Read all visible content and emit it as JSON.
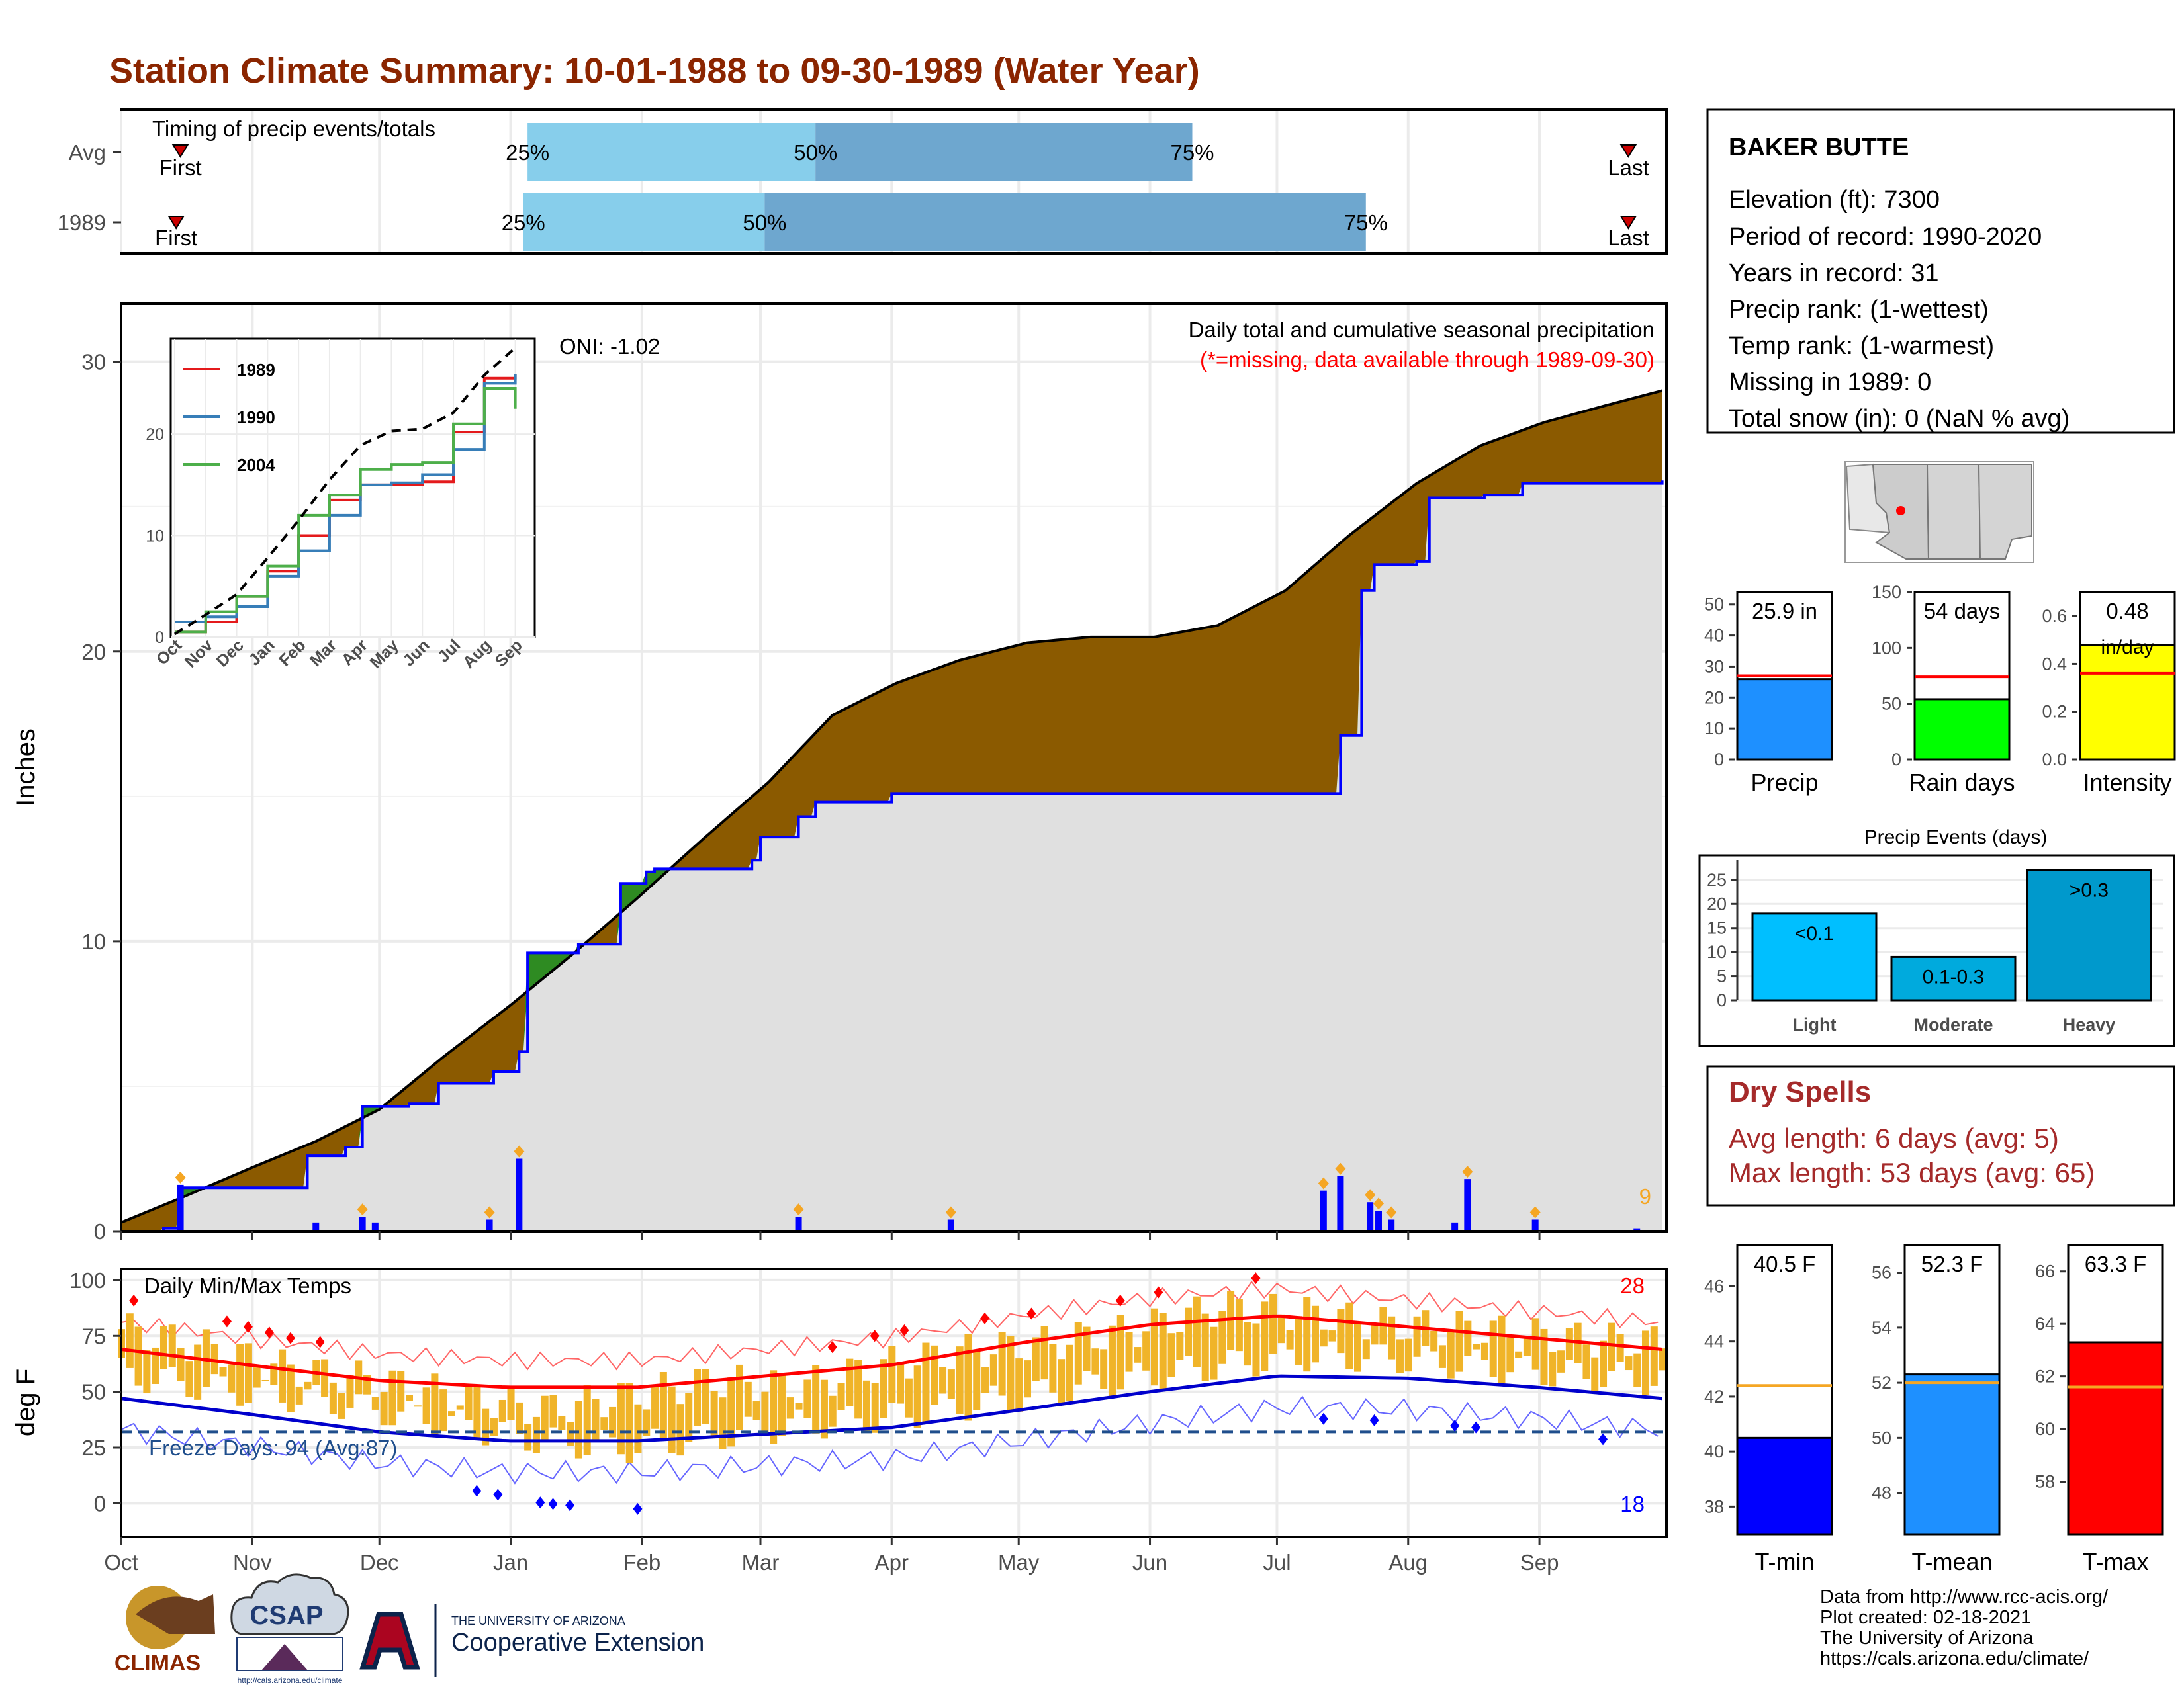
{
  "title": "Station Climate Summary: 10-01-1988 to 09-30-1989 (Water Year)",
  "colors": {
    "title": "#8b2500",
    "brown": "#8b5a00",
    "green": "#2e8b22",
    "blue": "#0000ff",
    "light_blue": "#87ceeb",
    "steel_blue": "#6ea7cf",
    "orange": "#f0b429",
    "red": "#ff0000",
    "avg_line": "#f5a623",
    "grey_fill": "#e0e0e0",
    "dry_spells": "#a52a2a"
  },
  "timing": {
    "label": "Timing of precip events/totals",
    "rows": [
      {
        "name": "Avg",
        "first_label": "First",
        "last_label": "Last",
        "first_day": 14,
        "last_day": 356,
        "p25": 96,
        "p50": 164,
        "p75": 253,
        "p25_label": "25%",
        "p50_label": "50%",
        "p75_label": "75%"
      },
      {
        "name": "1989",
        "first_label": "First",
        "last_label": "Last",
        "first_day": 13,
        "last_day": 356,
        "p25": 95,
        "p50": 152,
        "p75": 294,
        "p25_label": "25%",
        "p50_label": "50%",
        "p75_label": "75%"
      }
    ]
  },
  "chart_data": [
    {
      "type": "area",
      "id": "cumulative_precip",
      "title": "Daily total and cumulative seasonal precipitation",
      "subtitle": "(*=missing, data available through 1989-09-30)",
      "ylabel": "Inches",
      "ylim": [
        0,
        32
      ],
      "yticks": [
        0,
        10,
        20,
        30
      ],
      "x_months": [
        "Oct",
        "Nov",
        "Dec",
        "Jan",
        "Feb",
        "Mar",
        "Apr",
        "May",
        "Jun",
        "Jul",
        "Aug",
        "Sep"
      ],
      "oni_label": "ONI: -1.02",
      "count_label": "9",
      "avg_cumulative": {
        "day": [
          0,
          15,
          31,
          46,
          61,
          76,
          92,
          107,
          122,
          138,
          153,
          168,
          183,
          198,
          214,
          229,
          244,
          259,
          275,
          290,
          306,
          321,
          336,
          351,
          364
        ],
        "value": [
          0.3,
          1.2,
          2.2,
          3.1,
          4.2,
          6.0,
          7.8,
          9.6,
          11.5,
          13.6,
          15.5,
          17.8,
          18.9,
          19.7,
          20.3,
          20.5,
          20.5,
          20.9,
          22.1,
          24.0,
          25.8,
          27.1,
          27.9,
          28.5,
          29.0
        ]
      },
      "obs_cumulative": {
        "day": [
          0,
          10,
          14,
          40,
          44,
          53,
          57,
          68,
          75,
          88,
          94,
          96,
          108,
          118,
          124,
          126,
          149,
          151,
          160,
          164,
          176,
          182,
          226,
          232,
          282,
          288,
          293,
          296,
          306,
          309,
          322,
          331,
          364
        ],
        "value": [
          0.0,
          0.1,
          1.5,
          1.5,
          2.6,
          2.9,
          4.3,
          4.4,
          5.1,
          5.5,
          6.2,
          9.6,
          9.9,
          12.0,
          12.4,
          12.5,
          12.8,
          13.6,
          14.3,
          14.8,
          14.8,
          15.1,
          15.1,
          15.1,
          15.1,
          17.1,
          22.1,
          23.0,
          23.1,
          25.3,
          25.4,
          25.8,
          25.9
        ]
      },
      "daily_precip": {
        "day": [
          14,
          46,
          57,
          60,
          87,
          94,
          160,
          196,
          284,
          288,
          295,
          297,
          300,
          315,
          318,
          334,
          358
        ],
        "value": [
          1.6,
          0.3,
          0.5,
          0.3,
          0.4,
          2.5,
          0.5,
          0.4,
          1.4,
          1.9,
          1.0,
          0.7,
          0.4,
          0.3,
          1.8,
          0.4,
          0.1
        ]
      },
      "inset": {
        "type": "line",
        "xticks": [
          "Oct",
          "Nov",
          "Dec",
          "Jan",
          "Feb",
          "Mar",
          "Apr",
          "May",
          "Jun",
          "Jul",
          "Aug",
          "Sep"
        ],
        "yticks": [
          0,
          10,
          20
        ],
        "ylim": [
          0,
          29
        ],
        "series": [
          {
            "name": "1989",
            "color": "#e41a1c",
            "values": [
              0.5,
              1.5,
              4.0,
              6.5,
              10.0,
              13.5,
              15.0,
              15.0,
              15.3,
              20.2,
              25.5,
              25.9
            ]
          },
          {
            "name": "1990",
            "color": "#377eb8",
            "values": [
              1.5,
              2.0,
              3.0,
              6.0,
              8.5,
              12.0,
              15.0,
              15.2,
              16.0,
              18.5,
              25.0,
              25.9
            ]
          },
          {
            "name": "2004",
            "color": "#4daf4a",
            "values": [
              0.5,
              2.5,
              4.0,
              7.0,
              12.0,
              14.0,
              16.5,
              17.0,
              17.2,
              21.0,
              24.5,
              22.5
            ]
          }
        ],
        "avg_values": [
          0.3,
          2.2,
          4.2,
          7.8,
          11.5,
          15.5,
          18.9,
          20.3,
          20.5,
          22.1,
          25.8,
          28.5
        ]
      }
    },
    {
      "type": "bar",
      "id": "temps",
      "title": "Daily Min/Max Temps",
      "ylabel": "deg F",
      "ylim": [
        -15,
        105
      ],
      "yticks": [
        0,
        25,
        50,
        75,
        100
      ],
      "freeze_label": "Freeze Days: 94 (Avg:87)",
      "hot_count_label": "28",
      "cold_count_label": "18",
      "avg_max": {
        "day": [
          0,
          30,
          61,
          91,
          122,
          152,
          182,
          213,
          243,
          273,
          304,
          334,
          364
        ],
        "value": [
          69,
          62,
          55,
          52,
          52,
          57,
          62,
          72,
          80,
          84,
          79,
          74,
          69
        ]
      },
      "avg_min": {
        "day": [
          0,
          30,
          61,
          91,
          122,
          152,
          182,
          213,
          243,
          273,
          304,
          334,
          364
        ],
        "value": [
          47,
          40,
          32,
          28,
          28,
          31,
          34,
          42,
          50,
          57,
          56,
          52,
          47
        ]
      },
      "tmax_sample": {
        "day": [
          0,
          20,
          40,
          60,
          80,
          100,
          120,
          140,
          160,
          180,
          200,
          220,
          240,
          260,
          280,
          300,
          320,
          340,
          364
        ],
        "value": [
          78,
          70,
          60,
          55,
          48,
          42,
          48,
          55,
          52,
          62,
          68,
          72,
          78,
          88,
          85,
          80,
          78,
          74,
          72
        ]
      },
      "tmin_sample": {
        "day": [
          0,
          20,
          40,
          60,
          80,
          100,
          120,
          140,
          160,
          180,
          200,
          220,
          240,
          260,
          280,
          300,
          320,
          340,
          364
        ],
        "value": [
          48,
          42,
          38,
          32,
          25,
          18,
          15,
          20,
          25,
          28,
          34,
          40,
          46,
          52,
          56,
          55,
          52,
          48,
          45
        ]
      }
    },
    {
      "type": "bar",
      "id": "precip_bars",
      "panels": [
        {
          "label": "Precip",
          "value": 25.9,
          "value_label": "25.9 in",
          "avg": 27.0,
          "ylim": [
            0,
            54
          ],
          "yticks": [
            0,
            10,
            20,
            30,
            40,
            50
          ],
          "color": "#1e90ff"
        },
        {
          "label": "Rain days",
          "value": 54,
          "value_label": "54 days",
          "avg": 74,
          "ylim": [
            0,
            150
          ],
          "yticks": [
            0,
            50,
            100,
            150
          ],
          "color": "#00ff00"
        },
        {
          "label": "Intensity",
          "value": 0.48,
          "value_label": "0.48",
          "unit_label": "in/day",
          "avg": 0.36,
          "ylim": [
            0,
            0.7
          ],
          "yticks": [
            0.0,
            0.2,
            0.4,
            0.6
          ],
          "color": "#ffff00"
        }
      ]
    },
    {
      "type": "bar",
      "id": "precip_events",
      "title": "Precip Events (days)",
      "categories": [
        "Light",
        "Moderate",
        "Heavy"
      ],
      "values": [
        18,
        9,
        27
      ],
      "bar_labels": [
        "<0.1",
        "0.1-0.3",
        ">0.3"
      ],
      "colors": [
        "#00bfff",
        "#00aadd",
        "#0099cc"
      ],
      "ylim": [
        0,
        28
      ],
      "yticks": [
        0,
        5,
        10,
        15,
        20,
        25
      ]
    },
    {
      "type": "bar",
      "id": "temp_bars",
      "panels": [
        {
          "label": "T-min",
          "value": 40.5,
          "value_label": "40.5 F",
          "avg": 42.4,
          "ylim": [
            37,
            47.5
          ],
          "yticks": [
            38,
            40,
            42,
            44,
            46
          ],
          "color": "#0000ff"
        },
        {
          "label": "T-mean",
          "value": 52.3,
          "value_label": "52.3 F",
          "avg": 52.0,
          "ylim": [
            46.5,
            57
          ],
          "yticks": [
            48,
            50,
            52,
            54,
            56
          ],
          "color": "#1e90ff"
        },
        {
          "label": "T-max",
          "value": 63.3,
          "value_label": "63.3 F",
          "avg": 61.6,
          "ylim": [
            56,
            67
          ],
          "yticks": [
            58,
            60,
            62,
            64,
            66
          ],
          "color": "#ff0000"
        }
      ]
    }
  ],
  "station": {
    "name": "BAKER BUTTE",
    "lines": [
      "Elevation (ft): 7300",
      "Period of record: 1990-2020",
      "Years in record: 31",
      "Precip rank:  (1-wettest)",
      "Temp rank:  (1-warmest)",
      "Missing in 1989: 0",
      "Total snow (in): 0 (NaN % avg)"
    ]
  },
  "dry_spells": {
    "title": "Dry Spells",
    "avg_line": "Avg length: 6 days (avg: 5)",
    "max_line": "Max length: 53 days (avg: 65)"
  },
  "footer": {
    "lines": [
      "Data from http://www.rcc-acis.org/",
      "Plot created: 02-18-2021",
      "The University of Arizona",
      "https://cals.arizona.edu/climate/"
    ],
    "logo_climas": "CLIMAS",
    "logo_csap": "CSAP",
    "logo_csap_url": "http://cals.arizona.edu/climate",
    "ua_small": "THE UNIVERSITY OF ARIZONA",
    "ua_big": "Cooperative Extension"
  }
}
